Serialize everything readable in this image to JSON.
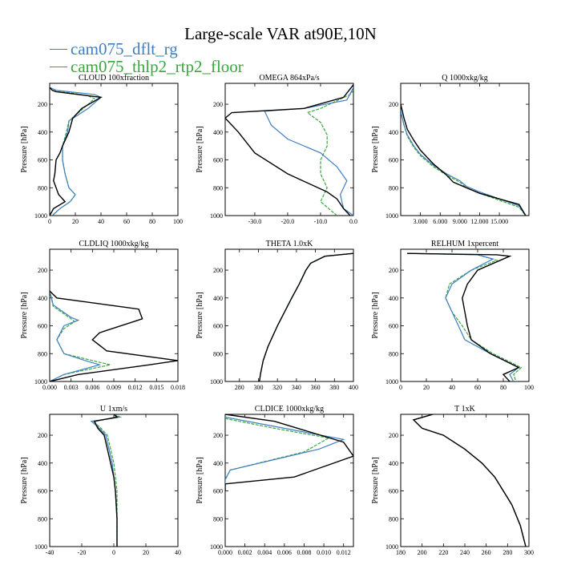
{
  "title": "Large-scale VAR at90E,10N",
  "legend": [
    {
      "label": "cam075_dflt_rg",
      "color": "#3f7fbf"
    },
    {
      "label": "cam075_thlp2_rtp2_floor",
      "color": "#3aa640"
    }
  ],
  "colors": {
    "black_curve": "#000000"
  },
  "chart_data": [
    {
      "type": "line",
      "title": "CLOUD 100xfraction",
      "ylabel": "Pressure [hPa]",
      "xlim": [
        0,
        100
      ],
      "ylim": [
        1000,
        50
      ],
      "xticks": [
        "0",
        "20",
        "40",
        "60",
        "80",
        "100"
      ],
      "yticks": [
        "200",
        "400",
        "600",
        "800",
        "1000"
      ],
      "series": [
        {
          "color": "black",
          "x": [
            0,
            2,
            5,
            40,
            25,
            18,
            15,
            10,
            8,
            5,
            4,
            3,
            5,
            7,
            12,
            3,
            0
          ],
          "y": [
            80,
            100,
            110,
            150,
            230,
            300,
            400,
            500,
            550,
            600,
            700,
            750,
            800,
            850,
            900,
            950,
            1000
          ]
        },
        {
          "color": "blue",
          "x": [
            0,
            5,
            35,
            40,
            30,
            15,
            14,
            10,
            10,
            12,
            15,
            20,
            16,
            8,
            2
          ],
          "y": [
            80,
            100,
            130,
            150,
            230,
            320,
            400,
            500,
            600,
            700,
            800,
            850,
            900,
            950,
            1000
          ]
        },
        {
          "color": "green",
          "x": [
            0,
            5,
            30,
            35,
            25,
            15,
            13,
            10,
            10,
            12,
            15,
            20,
            16,
            8,
            2
          ],
          "y": [
            80,
            100,
            140,
            160,
            240,
            320,
            400,
            500,
            600,
            700,
            800,
            850,
            900,
            950,
            1000
          ]
        }
      ]
    },
    {
      "type": "line",
      "title": "OMEGA  864xPa/s",
      "ylabel": "Pressure [hPa]",
      "xlim": [
        -39,
        0
      ],
      "ylim": [
        1000,
        50
      ],
      "xticks": [
        "-30.0",
        "-20.0",
        "-10.0",
        "0.0"
      ],
      "yticks": [
        "200",
        "400",
        "600",
        "800",
        "1000"
      ],
      "series": [
        {
          "color": "black",
          "x": [
            0,
            -3,
            -15,
            -37,
            -39,
            -35,
            -30,
            -20,
            -8,
            -5,
            -3,
            -1
          ],
          "y": [
            60,
            150,
            230,
            260,
            300,
            400,
            550,
            700,
            830,
            880,
            950,
            1000
          ]
        },
        {
          "color": "blue",
          "x": [
            0,
            -2,
            -15,
            -27,
            -25,
            -20,
            -10,
            -5,
            -2,
            -4,
            -3,
            0
          ],
          "y": [
            80,
            170,
            230,
            250,
            350,
            450,
            550,
            650,
            750,
            850,
            950,
            1000
          ]
        },
        {
          "color": "green",
          "x": [
            0,
            -1,
            -10,
            -14,
            -10,
            -8,
            -8,
            -10,
            -10,
            -8,
            -10,
            -5
          ],
          "y": [
            100,
            130,
            230,
            260,
            330,
            420,
            500,
            600,
            700,
            800,
            900,
            1000
          ]
        }
      ]
    },
    {
      "type": "line",
      "title": "Q  1000xkg/kg",
      "ylabel": "Pressure [hPa]",
      "xlim": [
        0,
        19.5
      ],
      "ylim": [
        1000,
        50
      ],
      "xticks": [
        "3.000",
        "6.000",
        "9.000",
        "12.000",
        "15.000"
      ],
      "yticks": [
        "200",
        "400",
        "600",
        "800",
        "1000"
      ],
      "series": [
        {
          "color": "black",
          "x": [
            0,
            0.5,
            1,
            2,
            3,
            4,
            5,
            6,
            7,
            8,
            10,
            12,
            15,
            18,
            19
          ],
          "y": [
            200,
            300,
            380,
            460,
            530,
            580,
            630,
            670,
            710,
            760,
            800,
            840,
            880,
            920,
            1000
          ]
        },
        {
          "color": "blue",
          "x": [
            0,
            0.5,
            1,
            2,
            3,
            5,
            7,
            9,
            10,
            12,
            15,
            18,
            19
          ],
          "y": [
            250,
            350,
            420,
            500,
            560,
            640,
            700,
            750,
            790,
            830,
            880,
            930,
            1000
          ]
        },
        {
          "color": "green",
          "x": [
            0,
            0.5,
            1,
            2,
            3,
            5,
            7,
            9,
            10,
            12,
            15,
            18,
            19
          ],
          "y": [
            250,
            350,
            430,
            510,
            570,
            650,
            710,
            760,
            800,
            840,
            890,
            940,
            1000
          ]
        }
      ]
    },
    {
      "type": "line",
      "title": "CLDLIQ  1000xkg/kg",
      "ylabel": "Pressure [hPa]",
      "xlim": [
        0,
        0.018
      ],
      "ylim": [
        1000,
        50
      ],
      "xticks": [
        "0.000",
        "0.003",
        "0.006",
        "0.009",
        "0.012",
        "0.015",
        "0.018"
      ],
      "yticks": [
        "200",
        "400",
        "600",
        "800",
        "1000"
      ],
      "series": [
        {
          "color": "black",
          "x": [
            0,
            0.001,
            0.0125,
            0.013,
            0.007,
            0.006,
            0.008,
            0.018,
            0.014,
            0.004,
            0
          ],
          "y": [
            350,
            400,
            480,
            550,
            650,
            700,
            780,
            850,
            880,
            950,
            1000
          ]
        },
        {
          "color": "blue",
          "x": [
            0,
            0.0005,
            0.003,
            0.004,
            0.002,
            0.001,
            0.002,
            0.005,
            0.007,
            0.002,
            0
          ],
          "y": [
            350,
            450,
            540,
            560,
            600,
            700,
            800,
            850,
            880,
            950,
            1000
          ]
        },
        {
          "color": "green",
          "x": [
            0,
            0.0005,
            0.003,
            0.0035,
            0.002,
            0.001,
            0.002,
            0.006,
            0.0085,
            0.002,
            0
          ],
          "y": [
            350,
            460,
            550,
            570,
            620,
            700,
            800,
            850,
            880,
            950,
            1000
          ]
        }
      ]
    },
    {
      "type": "line",
      "title": "THETA  1.0xK",
      "ylabel": "Pressure [hPa]",
      "xlim": [
        265,
        400
      ],
      "ylim": [
        1000,
        50
      ],
      "xticks": [
        "280",
        "300",
        "320",
        "340",
        "360",
        "380",
        "400"
      ],
      "yticks": [
        "200",
        "400",
        "600",
        "800",
        "1000"
      ],
      "series": [
        {
          "color": "black",
          "x": [
            400,
            370,
            355,
            350,
            343,
            335,
            320,
            310,
            305,
            302,
            301
          ],
          "y": [
            80,
            100,
            150,
            200,
            300,
            400,
            600,
            750,
            850,
            950,
            1000
          ]
        },
        {
          "color": "blue",
          "x": [
            400,
            370,
            355,
            350,
            343,
            335,
            320,
            310,
            305,
            302,
            301
          ],
          "y": [
            80,
            100,
            150,
            200,
            300,
            400,
            600,
            750,
            850,
            950,
            1000
          ]
        },
        {
          "color": "green",
          "x": [
            400,
            370,
            355,
            350,
            343,
            335,
            320,
            310,
            305,
            302,
            301
          ],
          "y": [
            80,
            100,
            150,
            200,
            300,
            400,
            600,
            750,
            850,
            950,
            1000
          ]
        }
      ]
    },
    {
      "type": "line",
      "title": "RELHUM  1xpercent",
      "ylabel": "Pressure [hPa]",
      "xlim": [
        0,
        100
      ],
      "ylim": [
        1000,
        50
      ],
      "xticks": [
        "0",
        "20",
        "40",
        "60",
        "80",
        "100"
      ],
      "yticks": [
        "200",
        "400",
        "600",
        "800",
        "1000"
      ],
      "series": [
        {
          "color": "black",
          "x": [
            5,
            75,
            85,
            60,
            52,
            48,
            50,
            52,
            55,
            70,
            92,
            80,
            85
          ],
          "y": [
            80,
            90,
            100,
            200,
            300,
            400,
            500,
            600,
            700,
            800,
            900,
            950,
            1000
          ]
        },
        {
          "color": "blue",
          "x": [
            5,
            60,
            72,
            55,
            40,
            35,
            40,
            45,
            50,
            70,
            92,
            85,
            88
          ],
          "y": [
            80,
            90,
            120,
            200,
            300,
            400,
            500,
            600,
            700,
            800,
            900,
            950,
            1000
          ]
        },
        {
          "color": "green",
          "x": [
            5,
            60,
            75,
            55,
            38,
            35,
            40,
            48,
            55,
            72,
            94,
            88,
            90
          ],
          "y": [
            80,
            90,
            130,
            200,
            300,
            400,
            500,
            600,
            700,
            800,
            900,
            950,
            1000
          ]
        }
      ]
    },
    {
      "type": "line",
      "title": "U  1xm/s",
      "ylabel": "Pressure [hPa]",
      "xlim": [
        -40,
        40
      ],
      "ylim": [
        1000,
        50
      ],
      "xticks": [
        "-40",
        "-20",
        "0",
        "20",
        "40"
      ],
      "yticks": [
        "200",
        "400",
        "600",
        "800",
        "1000"
      ],
      "series": [
        {
          "color": "black",
          "x": [
            0,
            2,
            -12,
            -10,
            -6,
            -4,
            -2,
            0,
            1,
            2,
            2
          ],
          "y": [
            50,
            70,
            100,
            150,
            200,
            300,
            400,
            500,
            600,
            800,
            1000
          ]
        },
        {
          "color": "blue",
          "x": [
            0,
            3,
            -14,
            -9,
            -5,
            -3,
            -1,
            0,
            1,
            2,
            2
          ],
          "y": [
            50,
            70,
            100,
            150,
            200,
            300,
            400,
            500,
            600,
            800,
            1000
          ]
        },
        {
          "color": "green",
          "x": [
            0,
            4,
            -13,
            -8,
            -4,
            -2,
            0,
            1,
            2,
            2,
            2
          ],
          "y": [
            50,
            70,
            100,
            150,
            200,
            300,
            400,
            500,
            600,
            800,
            1000
          ]
        }
      ]
    },
    {
      "type": "line",
      "title": "CLDICE  1000xkg/kg",
      "ylabel": "Pressure [hPa]",
      "xlim": [
        0,
        0.013
      ],
      "ylim": [
        1000,
        50
      ],
      "xticks": [
        "0.000",
        "0.002",
        "0.004",
        "0.006",
        "0.008",
        "0.010",
        "0.012"
      ],
      "yticks": [
        "200",
        "400",
        "600",
        "800",
        "1000"
      ],
      "series": [
        {
          "color": "black",
          "x": [
            0,
            0.005,
            0.012,
            0.013,
            0.009,
            0.007,
            0,
            0
          ],
          "y": [
            50,
            100,
            250,
            350,
            450,
            500,
            550,
            600
          ]
        },
        {
          "color": "blue",
          "x": [
            0,
            0.006,
            0.012,
            0.0095,
            0.0005,
            0,
            0
          ],
          "y": [
            70,
            150,
            230,
            300,
            450,
            520,
            600
          ]
        },
        {
          "color": "green",
          "x": [
            0,
            0.005,
            0.0105,
            0.008,
            0.0005,
            0,
            0
          ],
          "y": [
            80,
            150,
            220,
            320,
            450,
            520,
            600
          ]
        }
      ]
    },
    {
      "type": "line",
      "title": "T  1xK",
      "ylabel": "Pressure [hPa]",
      "xlim": [
        180,
        300
      ],
      "ylim": [
        1000,
        50
      ],
      "xticks": [
        "180",
        "200",
        "220",
        "240",
        "260",
        "280",
        "300"
      ],
      "yticks": [
        "200",
        "400",
        "600",
        "800",
        "1000"
      ],
      "series": [
        {
          "color": "black",
          "x": [
            210,
            192,
            200,
            220,
            240,
            256,
            268,
            276,
            284,
            292,
            297
          ],
          "y": [
            50,
            90,
            150,
            200,
            300,
            400,
            500,
            600,
            700,
            850,
            1000
          ]
        },
        {
          "color": "blue",
          "x": [
            210,
            192,
            200,
            220,
            240,
            256,
            268,
            276,
            284,
            292,
            297
          ],
          "y": [
            50,
            90,
            150,
            200,
            300,
            400,
            500,
            600,
            700,
            850,
            1000
          ]
        },
        {
          "color": "green",
          "x": [
            210,
            192,
            200,
            220,
            240,
            256,
            268,
            276,
            284,
            292,
            297
          ],
          "y": [
            50,
            90,
            150,
            200,
            300,
            400,
            500,
            600,
            700,
            850,
            1000
          ]
        }
      ]
    }
  ]
}
